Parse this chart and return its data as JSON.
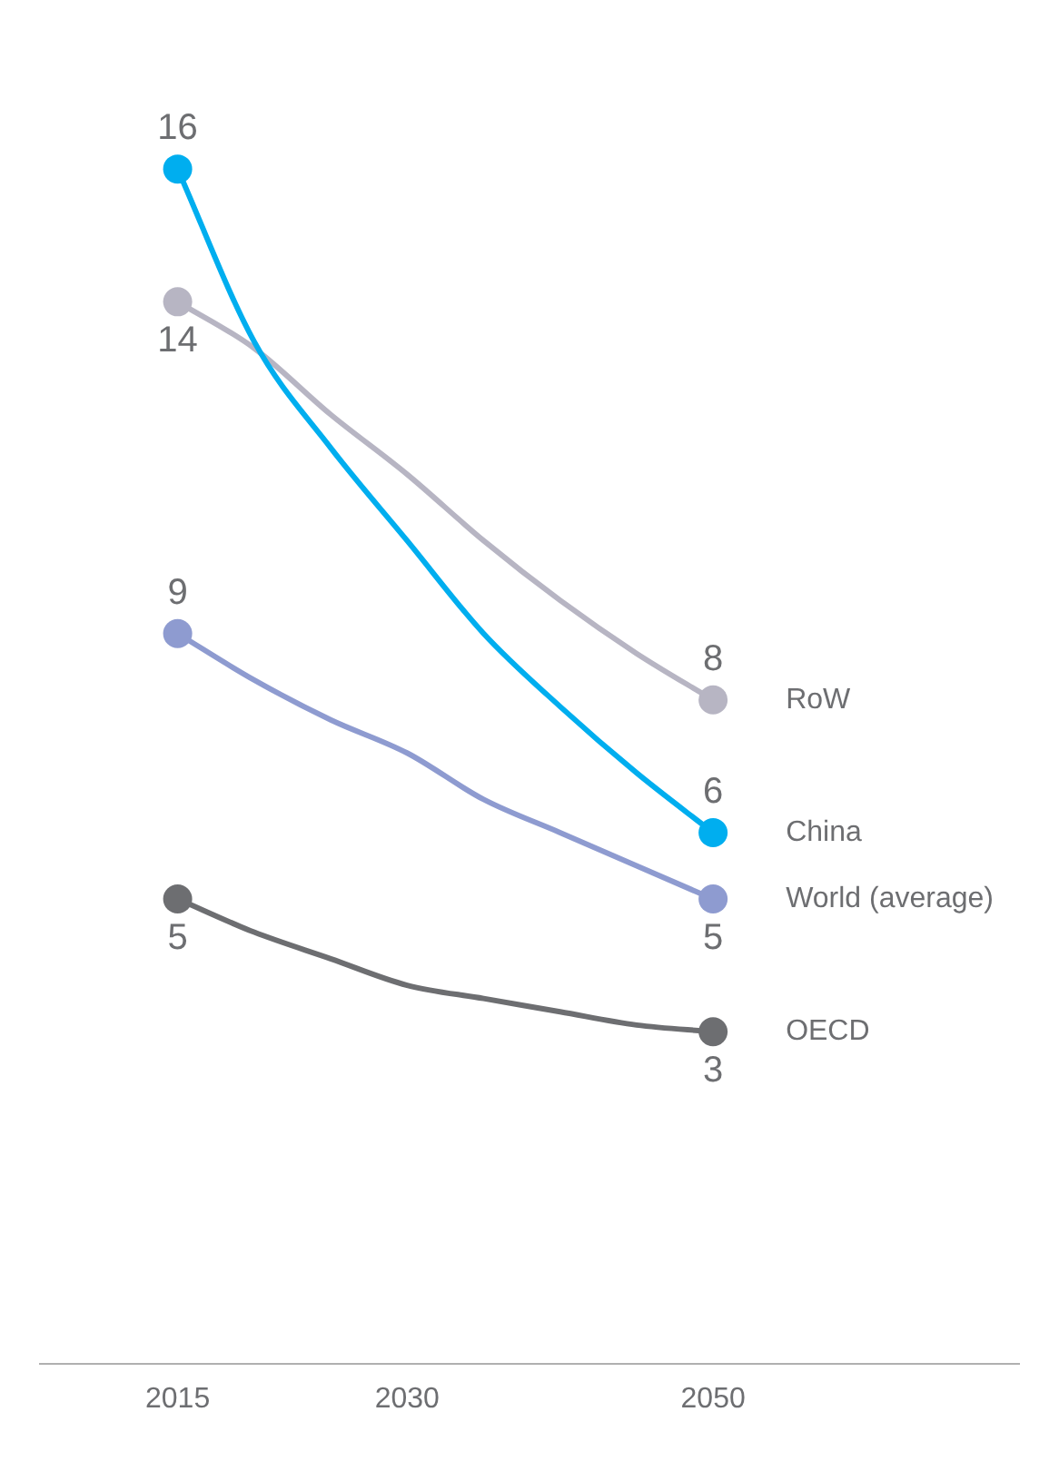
{
  "chart_data": {
    "type": "line",
    "xticks": [
      2015,
      2030,
      2050
    ],
    "xlim": [
      2006,
      2070
    ],
    "legend": false,
    "grid": false,
    "tick_labels": "x",
    "series": [
      {
        "name": "China",
        "color": "#00aeef",
        "x": [
          2015,
          2020,
          2025,
          2030,
          2035,
          2040,
          2045,
          2050
        ],
        "values": [
          16,
          13.4,
          11.8,
          10.4,
          9.0,
          7.9,
          6.9,
          6
        ],
        "value_labels": [
          "16",
          null,
          null,
          null,
          null,
          null,
          null,
          "6"
        ]
      },
      {
        "name": "RoW",
        "color": "#b7b5c3",
        "x": [
          2015,
          2020,
          2025,
          2030,
          2035,
          2040,
          2045,
          2050
        ],
        "values": [
          14,
          13.3,
          12.3,
          11.4,
          10.4,
          9.5,
          8.7,
          8
        ],
        "value_labels": [
          "14",
          null,
          null,
          null,
          null,
          null,
          null,
          "8"
        ]
      },
      {
        "name": "World (average)",
        "color": "#8e9bd0",
        "x": [
          2015,
          2020,
          2025,
          2030,
          2035,
          2040,
          2045,
          2050
        ],
        "values": [
          9,
          8.3,
          7.7,
          7.2,
          6.5,
          6.0,
          5.5,
          5
        ],
        "value_labels": [
          "9",
          null,
          null,
          null,
          null,
          null,
          null,
          "5"
        ]
      },
      {
        "name": "OECD",
        "color": "#6d6e71",
        "x": [
          2015,
          2020,
          2025,
          2030,
          2035,
          2040,
          2045,
          2050
        ],
        "values": [
          5,
          4.5,
          4.1,
          3.7,
          3.5,
          3.3,
          3.1,
          3
        ],
        "value_labels": [
          "5",
          null,
          null,
          null,
          null,
          null,
          null,
          "3"
        ]
      }
    ]
  }
}
